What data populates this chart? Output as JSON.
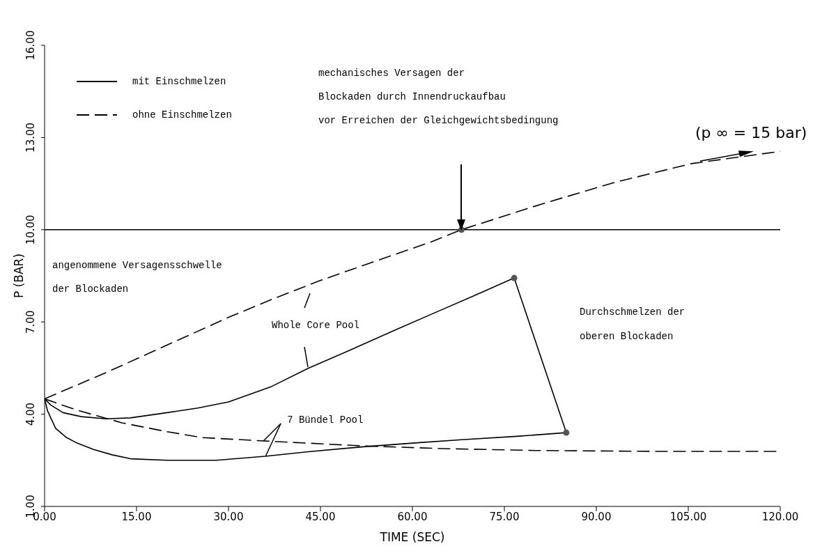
{
  "chart_data": {
    "type": "line",
    "xlabel": "TIME (SEC)",
    "ylabel": "P (BAR)",
    "xlim": [
      0,
      120
    ],
    "ylim": [
      1,
      16
    ],
    "xticks": [
      {
        "value": 0,
        "label": "0.00"
      },
      {
        "value": 15,
        "label": "15.00"
      },
      {
        "value": 30,
        "label": "30.00"
      },
      {
        "value": 45,
        "label": "45.00"
      },
      {
        "value": 60,
        "label": "60.00"
      },
      {
        "value": 75,
        "label": "75.00"
      },
      {
        "value": 90,
        "label": "90.00"
      },
      {
        "value": 105,
        "label": "105.00"
      },
      {
        "value": 120,
        "label": "120.00"
      }
    ],
    "yticks": [
      {
        "value": 1,
        "label": "1.00"
      },
      {
        "value": 4,
        "label": "4.00"
      },
      {
        "value": 7,
        "label": "7.00"
      },
      {
        "value": 10,
        "label": "10.00"
      },
      {
        "value": 13,
        "label": "13.00"
      },
      {
        "value": 16,
        "label": "16.00"
      }
    ],
    "legend": "top left",
    "series": [
      {
        "name": "mit Einschmelzen",
        "color": "#000000",
        "line_style": "solid",
        "x": [
          0,
          1,
          3,
          6,
          10,
          14,
          20,
          25,
          30,
          37,
          43,
          50,
          57,
          64,
          70,
          76.6,
          85.1
        ],
        "values": [
          4.5,
          4.3,
          4.05,
          3.92,
          3.85,
          3.88,
          4.05,
          4.2,
          4.4,
          4.9,
          5.49,
          6.1,
          6.72,
          7.33,
          7.85,
          8.43,
          3.4
        ]
      },
      {
        "color": "#000000",
        "line_style": "solid",
        "x": [
          0,
          0.5,
          1.8,
          3.5,
          5.3,
          8,
          11,
          14,
          20,
          28,
          36,
          43,
          52,
          60,
          68,
          77,
          85.1
        ],
        "values": [
          4.5,
          4.1,
          3.54,
          3.25,
          3.06,
          2.85,
          2.68,
          2.55,
          2.5,
          2.5,
          2.63,
          2.78,
          2.94,
          3.06,
          3.17,
          3.28,
          3.4
        ]
      },
      {
        "name": "ohne Einschmelzen",
        "color": "#000000",
        "line_style": "dashed",
        "x": [
          0,
          10,
          20,
          30,
          37,
          45,
          55,
          63,
          68,
          75,
          81,
          93,
          105.5,
          120
        ],
        "values": [
          4.5,
          5.35,
          6.25,
          7.15,
          7.73,
          8.35,
          9.05,
          9.6,
          10,
          10.45,
          10.83,
          11.54,
          12.15,
          12.55
        ]
      },
      {
        "color": "#000000",
        "line_style": "dashed",
        "x": [
          0,
          5,
          12.6,
          20,
          25.7,
          35.7,
          51.8,
          65,
          80,
          100,
          120
        ],
        "values": [
          4.5,
          4.15,
          3.72,
          3.43,
          3.24,
          3.13,
          2.97,
          2.88,
          2.82,
          2.79,
          2.79
        ]
      },
      {
        "type": "scatter",
        "marker": "circle",
        "color": "#555555",
        "x": [
          68,
          76.6,
          85.1
        ],
        "values": [
          10,
          8.43,
          3.4
        ]
      }
    ],
    "ref_lines": [
      {
        "axis": "y",
        "value": 10,
        "label": "angenommene Versagensschwelle\nder Blockaden",
        "color": "#000000"
      }
    ],
    "annotations": [
      "mechanisches Versagen der",
      "Blockaden durch Innendruckaufbau",
      "vor Erreichen der Gleichgewichtsbedingung",
      "Whole Core Pool",
      {
        "text": "7 Bündel Pool",
        "x": 35.7,
        "y": 3.13
      },
      "Durchschmelzen der",
      "oberen Blockaden",
      {
        "text": "(p ∞ = 15 bar)",
        "x": 120,
        "y": 12.55
      }
    ]
  }
}
